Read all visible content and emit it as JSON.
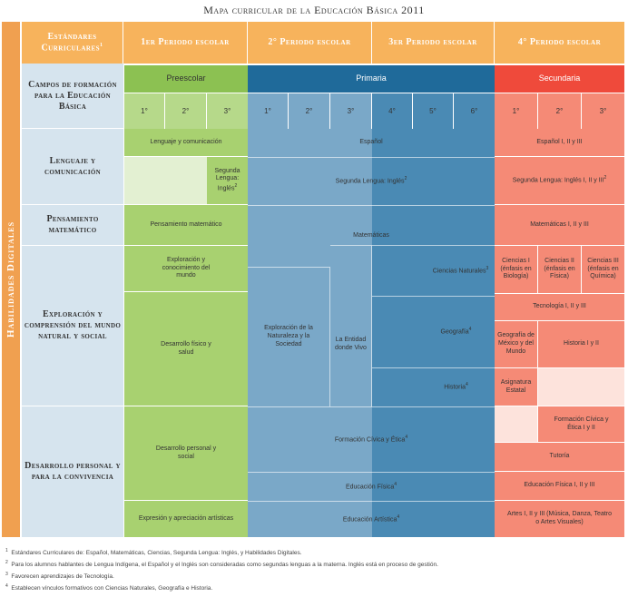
{
  "title": "Mapa curricular de la Educación Básica 2011",
  "side_label": "Habilidades Digitales",
  "colors": {
    "header_orange": "#f7b35c",
    "preescolar_green": "#8cc152",
    "primaria_blue": "#1f6a9a",
    "secundaria_red": "#ef4a3b",
    "camp_bg": "#d6e4ee"
  },
  "header": {
    "estandares": "Estándares Curriculares",
    "estandares_sup": "1",
    "periodo1": "1er Periodo escolar",
    "periodo2": "2° Periodo escolar",
    "periodo3": "3er Periodo escolar",
    "periodo4": "4° Periodo escolar"
  },
  "levels": {
    "campos_header": "Campos de formación para la Educación Básica",
    "preescolar": "Preescolar",
    "primaria": "Primaria",
    "secundaria": "Secundaria"
  },
  "grades": [
    "1°",
    "2°",
    "3°",
    "1°",
    "2°",
    "3°",
    "4°",
    "5°",
    "6°",
    "1°",
    "2°",
    "3°"
  ],
  "campos": {
    "lenguaje": "Lenguaje y comunicación",
    "pensamiento": "Pensamiento matemático",
    "exploracion": "Exploración y comprensión del mundo natural y social",
    "desarrollo": "Desarrollo personal y para la convivencia"
  },
  "cells": {
    "pre_lenguaje": "Lenguaje y comunicación",
    "pre_segunda": "Segunda Lengua: Inglés",
    "pri_espanol": "Español",
    "pri_segunda": "Segunda Lengua: Inglés",
    "sec_espanol": "Español I, II y III",
    "sec_segunda": "Segunda Lengua: Inglés I, II y III",
    "pre_pensamiento": "Pensamiento matemático",
    "pri_matematicas": "Matemáticas",
    "sec_matematicas": "Matemáticas I, II y III",
    "pre_exploracion": "Exploración y conocimiento del mundo",
    "pre_desarrollo_fisico": "Desarrollo físico y salud",
    "pri_exploracion_nat": "Exploración de la Naturaleza y la Sociedad",
    "pri_entidad": "La Entidad donde Vivo",
    "pri_ciencias": "Ciencias Naturales",
    "pri_geografia": "Geografía",
    "pri_historia": "Historia",
    "sec_ciencias1": "Ciencias I (énfasis en Biología)",
    "sec_ciencias2": "Ciencias II (énfasis en Física)",
    "sec_ciencias3": "Ciencias III (énfasis en Química)",
    "sec_tecnologia": "Tecnología I, II y III",
    "sec_geografia": "Geografía de México y del Mundo",
    "sec_historia": "Historia I y II",
    "sec_asignatura": "Asignatura Estatal",
    "pre_desarrollo_personal": "Desarrollo personal y social",
    "pri_formacion": "Formación Cívica y Ética",
    "sec_formacion": "Formación Cívica y Ética I y II",
    "sec_tutoria": "Tutoría",
    "pri_educacion_fisica": "Educación Física",
    "sec_educacion_fisica": "Educación Física I, II y III",
    "pre_expresion": "Expresión y apreciación artísticas",
    "pri_educacion_artistica": "Educación Artística",
    "sec_artes": "Artes I, II y III (Música, Danza, Teatro o Artes Visuales)"
  },
  "sups": {
    "two": "2",
    "three": "3",
    "four": "4"
  },
  "footnotes": [
    {
      "n": "1",
      "text": "Estándares Curriculares de: Español, Matemáticas, Ciencias, Segunda Lengua: Inglés, y Habilidades Digitales."
    },
    {
      "n": "2",
      "text": "Para los alumnos hablantes de Lengua Indígena, el Español y el Inglés son consideradas como segundas lenguas a la materna. Inglés está en proceso de gestión."
    },
    {
      "n": "3",
      "text": "Favorecen aprendizajes de Tecnología."
    },
    {
      "n": "4",
      "text": "Establecen vínculos formativos con Ciencias Naturales, Geografía e Historia."
    }
  ]
}
